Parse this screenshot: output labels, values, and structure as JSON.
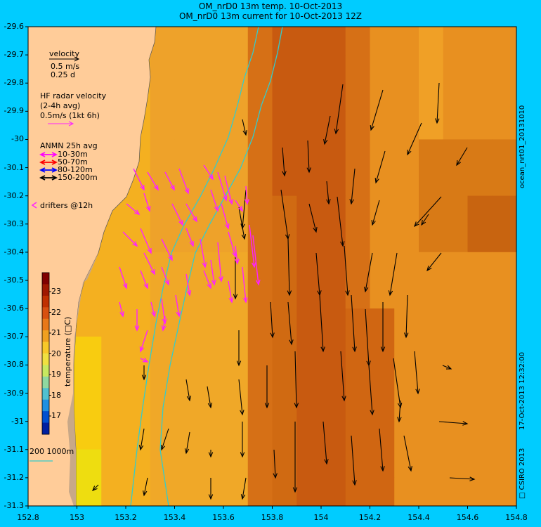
{
  "title_line1": "OM_nrD0 13m temp. 10-Oct-2013",
  "title_line2": "OM_nrD0 13m current for 10-Oct-2013 12Z",
  "x_ticks": [
    "152.8",
    "153",
    "153.2",
    "153.4",
    "153.6",
    "153.8",
    "154",
    "154.2",
    "154.4",
    "154.6",
    "154.8"
  ],
  "y_ticks": [
    "-29.6",
    "-29.7",
    "-29.8",
    "-29.9",
    "-30",
    "-30.1",
    "-30.2",
    "-30.3",
    "-30.4",
    "-30.5",
    "-30.6",
    "-30.7",
    "-30.8",
    "-30.9",
    "-31",
    "-31.1",
    "-31.2",
    "-31.3"
  ],
  "legend": {
    "velocity_label": "velocity",
    "velocity_scale": "0.5 m/s",
    "velocity_time": "0.25 d",
    "hf_title": "HF radar velocity",
    "hf_avg": "(2-4h avg)",
    "hf_scale": "0.5m/s (1kt 6h)",
    "anmn_title": "ANMN 25h avg",
    "anmn_items": [
      {
        "label": "10-30m",
        "color": "#ff00ff"
      },
      {
        "label": "50-70m",
        "color": "#ff0000"
      },
      {
        "label": "80-120m",
        "color": "#0000ff"
      },
      {
        "label": "150-200m",
        "color": "#000000"
      }
    ],
    "drifters": "drifters @12h",
    "isobaths": "200  1000m"
  },
  "colorbar": {
    "label": "temperature (□C)",
    "ticks": [
      "23",
      "22",
      "21",
      "20",
      "19",
      "18",
      "17"
    ]
  },
  "side_right_top": "ocean_nrt01_20131010",
  "side_right_bottom": "17-Oct-2013 12:32:00",
  "side_right_credit": "□ CSIRO 2013",
  "colors": {
    "land": "#ffcc99",
    "coast": "#c8a888",
    "isobath": "#33cccc",
    "radar": "#ff22ff",
    "frame": "#00ccff"
  }
}
